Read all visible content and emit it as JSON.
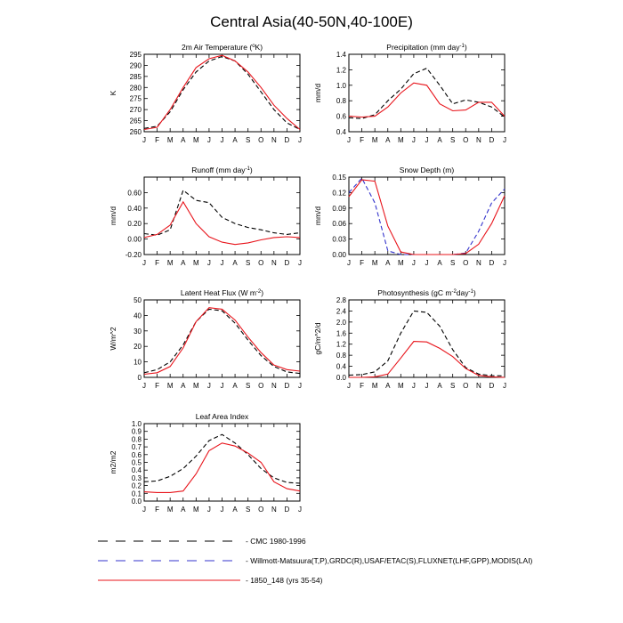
{
  "title": "Central Asia(40-50N,40-100E)",
  "months": [
    "J",
    "F",
    "M",
    "A",
    "M",
    "J",
    "J",
    "A",
    "S",
    "O",
    "N",
    "D",
    "J"
  ],
  "legend": [
    {
      "label": "CMC 1980-1996",
      "color": "#000000",
      "dash": "dash"
    },
    {
      "label": "Willmott-Matsuura(T,P),GRDC(R),USAF/ETAC(S),FLUXNET(LHF,GPP),MODIS(LAI)",
      "color": "#3333cc",
      "dash": "dash"
    },
    {
      "label": "1850_148 (yrs 35-54)",
      "color": "#e8141b",
      "dash": "solid"
    }
  ],
  "chart_data": [
    {
      "type": "line",
      "title_main": "2m Air Temperature (",
      "title_sup": "o",
      "title_end": "K)",
      "ylabel": "K",
      "ylim": [
        260,
        295
      ],
      "yticks": [
        260,
        265,
        270,
        275,
        280,
        285,
        290,
        295
      ],
      "ytick_labels": [
        "260",
        "265",
        "270",
        "275",
        "280",
        "285",
        "290",
        "295"
      ],
      "x": [
        "J",
        "F",
        "M",
        "A",
        "M",
        "J",
        "J",
        "A",
        "S",
        "O",
        "N",
        "D",
        "J"
      ],
      "series": [
        {
          "legend": 0,
          "values": [
            261.5,
            262.5,
            269,
            279,
            287,
            292,
            294,
            292,
            286,
            278,
            270,
            264,
            261
          ]
        },
        {
          "legend": 2,
          "values": [
            261,
            262,
            270,
            280,
            289,
            293,
            294.5,
            292,
            287,
            280,
            272,
            266,
            261
          ]
        }
      ]
    },
    {
      "type": "line",
      "title_main": "Precipitation (mm day",
      "title_sup": "-1",
      "title_end": ")",
      "ylabel": "mm/d",
      "ylim": [
        0.4,
        1.4
      ],
      "yticks": [
        0.4,
        0.6,
        0.8,
        1.0,
        1.2,
        1.4
      ],
      "ytick_labels": [
        "0.4",
        "0.6",
        "0.8",
        "1.0",
        "1.2",
        "1.4"
      ],
      "x": [
        "J",
        "F",
        "M",
        "A",
        "M",
        "J",
        "J",
        "A",
        "S",
        "O",
        "N",
        "D",
        "J"
      ],
      "series": [
        {
          "legend": 0,
          "values": [
            0.58,
            0.57,
            0.62,
            0.8,
            0.95,
            1.15,
            1.22,
            1.0,
            0.76,
            0.81,
            0.78,
            0.72,
            0.59
          ]
        },
        {
          "legend": 2,
          "values": [
            0.6,
            0.59,
            0.6,
            0.72,
            0.9,
            1.03,
            1.0,
            0.76,
            0.67,
            0.68,
            0.78,
            0.78,
            0.6
          ]
        }
      ]
    },
    {
      "type": "line",
      "title_main": "Runoff (mm day",
      "title_sup": "-1",
      "title_end": ")",
      "ylabel": "mm/d",
      "ylim": [
        -0.2,
        0.8
      ],
      "yticks": [
        -0.2,
        0.0,
        0.2,
        0.4,
        0.6
      ],
      "ytick_labels": [
        "-0.20",
        "0.00",
        "0.20",
        "0.40",
        "0.60"
      ],
      "x": [
        "J",
        "F",
        "M",
        "A",
        "M",
        "J",
        "J",
        "A",
        "S",
        "O",
        "N",
        "D",
        "J"
      ],
      "series": [
        {
          "legend": 0,
          "values": [
            0.07,
            0.05,
            0.12,
            0.63,
            0.5,
            0.47,
            0.28,
            0.2,
            0.15,
            0.12,
            0.08,
            0.06,
            0.08
          ]
        },
        {
          "legend": 2,
          "values": [
            0.02,
            0.06,
            0.18,
            0.48,
            0.2,
            0.03,
            -0.04,
            -0.07,
            -0.05,
            -0.01,
            0.02,
            0.03,
            0.02
          ]
        }
      ]
    },
    {
      "type": "line",
      "title_main": "Snow Depth (m)",
      "title_sup": "",
      "title_end": "",
      "ylabel": "mm/d",
      "ylim": [
        0.0,
        0.15
      ],
      "yticks": [
        0.0,
        0.03,
        0.06,
        0.09,
        0.12,
        0.15
      ],
      "ytick_labels": [
        "0.00",
        "0.03",
        "0.06",
        "0.09",
        "0.12",
        "0.15"
      ],
      "x": [
        "J",
        "F",
        "M",
        "A",
        "M",
        "J",
        "J",
        "A",
        "S",
        "O",
        "N",
        "D",
        "J"
      ],
      "series": [
        {
          "legend": 1,
          "values": [
            0.12,
            0.148,
            0.1,
            0.007,
            0.0,
            0.0,
            0.0,
            0.0,
            0.0,
            0.003,
            0.045,
            0.1,
            0.127
          ]
        },
        {
          "legend": 2,
          "values": [
            0.112,
            0.145,
            0.142,
            0.055,
            0.005,
            0.0,
            0.0,
            0.0,
            0.0,
            0.002,
            0.02,
            0.06,
            0.114
          ]
        }
      ]
    },
    {
      "type": "line",
      "title_main": "Latent Heat Flux (W m",
      "title_sup": "-2",
      "title_end": ")",
      "ylabel": "W/m^2",
      "ylim": [
        0,
        50
      ],
      "yticks": [
        0,
        10,
        20,
        30,
        40,
        50
      ],
      "ytick_labels": [
        "0",
        "10",
        "20",
        "30",
        "40",
        "50"
      ],
      "x": [
        "J",
        "F",
        "M",
        "A",
        "M",
        "J",
        "J",
        "A",
        "S",
        "O",
        "N",
        "D",
        "J"
      ],
      "series": [
        {
          "legend": 0,
          "values": [
            3,
            5,
            10,
            21,
            36,
            44,
            43,
            35,
            24,
            14,
            7,
            3.5,
            2.5
          ]
        },
        {
          "legend": 2,
          "values": [
            2,
            3,
            7,
            19,
            36,
            45,
            44,
            37,
            26,
            16,
            8,
            5,
            4
          ]
        }
      ]
    },
    {
      "type": "line",
      "title_main": "Photosynthesis (gC m",
      "title_sup": "-2",
      "title_end": "day",
      "title_sup2": "-1",
      "title_end2": ")",
      "ylabel": "gC/m^2/d",
      "ylim": [
        0.0,
        2.8
      ],
      "yticks": [
        0.0,
        0.4,
        0.8,
        1.2,
        1.6,
        2.0,
        2.4,
        2.8
      ],
      "ytick_labels": [
        "0.0",
        "0.4",
        "0.8",
        "1.2",
        "1.6",
        "2.0",
        "2.4",
        "2.8"
      ],
      "x": [
        "J",
        "F",
        "M",
        "A",
        "M",
        "J",
        "J",
        "A",
        "S",
        "O",
        "N",
        "D",
        "J"
      ],
      "series": [
        {
          "legend": 0,
          "values": [
            0.08,
            0.1,
            0.2,
            0.6,
            1.6,
            2.4,
            2.35,
            1.85,
            1.0,
            0.35,
            0.12,
            0.06,
            0.05
          ]
        },
        {
          "legend": 2,
          "values": [
            0.0,
            0.0,
            0.02,
            0.12,
            0.7,
            1.3,
            1.28,
            1.05,
            0.75,
            0.32,
            0.07,
            0.02,
            0.0
          ]
        }
      ]
    },
    {
      "type": "line",
      "title_main": "Leaf Area Index",
      "title_sup": "",
      "title_end": "",
      "ylabel": "m2/m2",
      "ylim": [
        0.0,
        1.0
      ],
      "yticks": [
        0.0,
        0.1,
        0.2,
        0.3,
        0.4,
        0.5,
        0.6,
        0.7,
        0.8,
        0.9,
        1.0
      ],
      "ytick_labels": [
        "0.0",
        "0.1",
        "0.2",
        "0.3",
        "0.4",
        "0.5",
        "0.6",
        "0.7",
        "0.8",
        "0.9",
        "1.0"
      ],
      "x": [
        "J",
        "F",
        "M",
        "A",
        "M",
        "J",
        "J",
        "A",
        "S",
        "O",
        "N",
        "D",
        "J"
      ],
      "series": [
        {
          "legend": 0,
          "values": [
            0.25,
            0.26,
            0.32,
            0.42,
            0.58,
            0.78,
            0.86,
            0.75,
            0.6,
            0.42,
            0.3,
            0.24,
            0.23
          ]
        },
        {
          "legend": 2,
          "values": [
            0.12,
            0.11,
            0.11,
            0.13,
            0.35,
            0.65,
            0.75,
            0.71,
            0.62,
            0.5,
            0.25,
            0.16,
            0.13
          ]
        }
      ]
    }
  ]
}
